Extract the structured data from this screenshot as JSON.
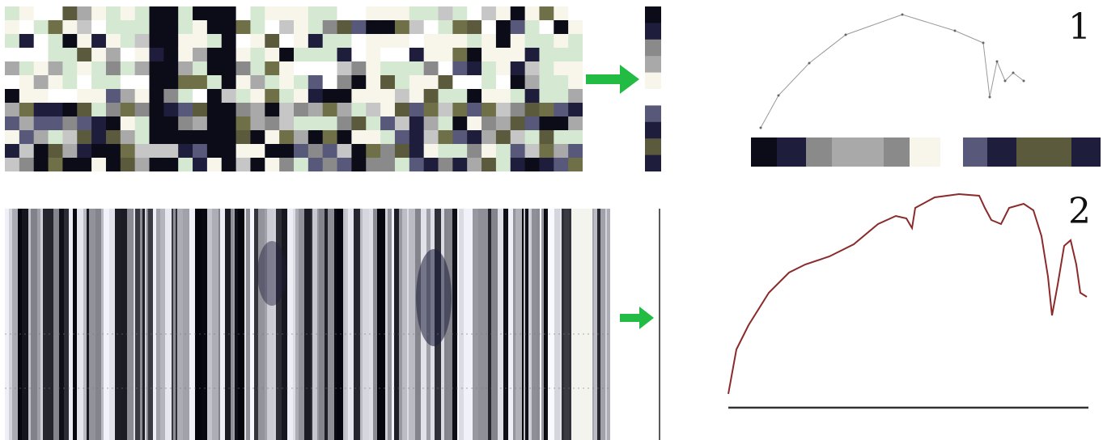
{
  "labels": {
    "panel1": "1",
    "panel2": "2"
  },
  "colors": {
    "palette": [
      "#0b0c18",
      "#1e1d3c",
      "#57587a",
      "#8a8a8a",
      "#a9a9a9",
      "#c6c6c6",
      "#f8f6ea",
      "#d4e8d2",
      "#5c5a3c",
      "#6f7048",
      "#ffffff"
    ],
    "arrow": "#22bb44",
    "curve2": "#8b2a2a",
    "curve1": "#999999"
  },
  "bar_colors_1": [
    "#0b0c18",
    "#1e1d3c",
    "#8a8a8a",
    "#a9a9a9",
    "#8a8a8a",
    "#f8f6ea",
    "#ffffff",
    "#57587a",
    "#1e1d3c",
    "#5c5a3c",
    "#1e1d3c"
  ],
  "curve_1": [
    [
      0,
      150
    ],
    [
      22,
      110
    ],
    [
      60,
      70
    ],
    [
      105,
      35
    ],
    [
      175,
      10
    ],
    [
      240,
      30
    ],
    [
      275,
      45
    ],
    [
      283,
      112
    ],
    [
      292,
      68
    ],
    [
      302,
      92
    ],
    [
      312,
      82
    ],
    [
      325,
      92
    ]
  ],
  "curve_2": [
    [
      5,
      255
    ],
    [
      15,
      200
    ],
    [
      30,
      170
    ],
    [
      55,
      130
    ],
    [
      80,
      105
    ],
    [
      100,
      95
    ],
    [
      130,
      85
    ],
    [
      160,
      70
    ],
    [
      190,
      45
    ],
    [
      212,
      35
    ],
    [
      225,
      38
    ],
    [
      232,
      50
    ],
    [
      236,
      25
    ],
    [
      260,
      12
    ],
    [
      290,
      8
    ],
    [
      315,
      10
    ],
    [
      322,
      25
    ],
    [
      330,
      40
    ],
    [
      342,
      45
    ],
    [
      352,
      25
    ],
    [
      370,
      20
    ],
    [
      382,
      28
    ],
    [
      392,
      60
    ],
    [
      400,
      110
    ],
    [
      405,
      158
    ],
    [
      412,
      120
    ],
    [
      420,
      72
    ],
    [
      428,
      65
    ],
    [
      435,
      95
    ],
    [
      440,
      130
    ],
    [
      448,
      135
    ]
  ]
}
